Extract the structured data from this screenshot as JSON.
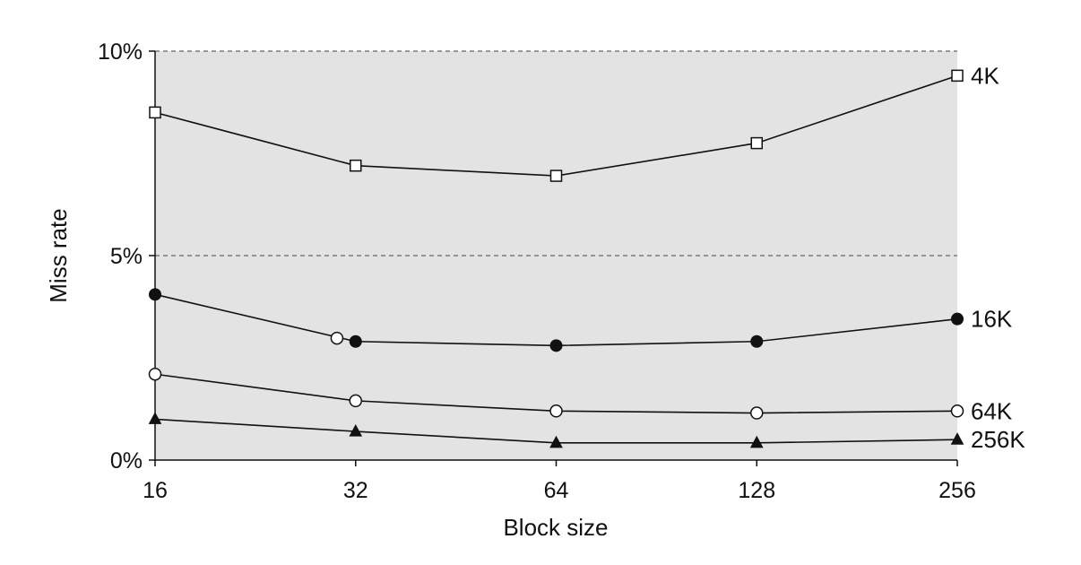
{
  "chart_data": {
    "type": "line",
    "xlabel": "Block size",
    "ylabel": "Miss rate",
    "x": [
      16,
      32,
      64,
      128,
      256
    ],
    "x_scale": "log2",
    "xlim": [
      16,
      256
    ],
    "ylim": [
      0,
      10
    ],
    "y_ticks": [
      0,
      5,
      10
    ],
    "y_tick_labels": [
      "0%",
      "5%",
      "10%"
    ],
    "x_tick_labels": [
      "16",
      "32",
      "64",
      "128",
      "256"
    ],
    "grid": "dashed horizontal lines at 5% and 10%",
    "background_color": "#e3e3e3",
    "series": [
      {
        "name": "4K",
        "marker": "square-open",
        "values": [
          8.5,
          7.2,
          6.95,
          7.75,
          9.4
        ]
      },
      {
        "name": "16K",
        "marker": "circle-filled",
        "values": [
          4.05,
          2.9,
          2.8,
          2.9,
          3.45
        ]
      },
      {
        "name": "64K",
        "marker": "circle-open",
        "values": [
          2.1,
          1.45,
          1.2,
          1.15,
          1.2
        ]
      },
      {
        "name": "256K",
        "marker": "triangle-filled",
        "values": [
          1.0,
          0.7,
          0.42,
          0.42,
          0.5
        ]
      }
    ],
    "annotations": [
      {
        "marker": "circle-open",
        "x": 30,
        "y": 2.98
      }
    ]
  }
}
